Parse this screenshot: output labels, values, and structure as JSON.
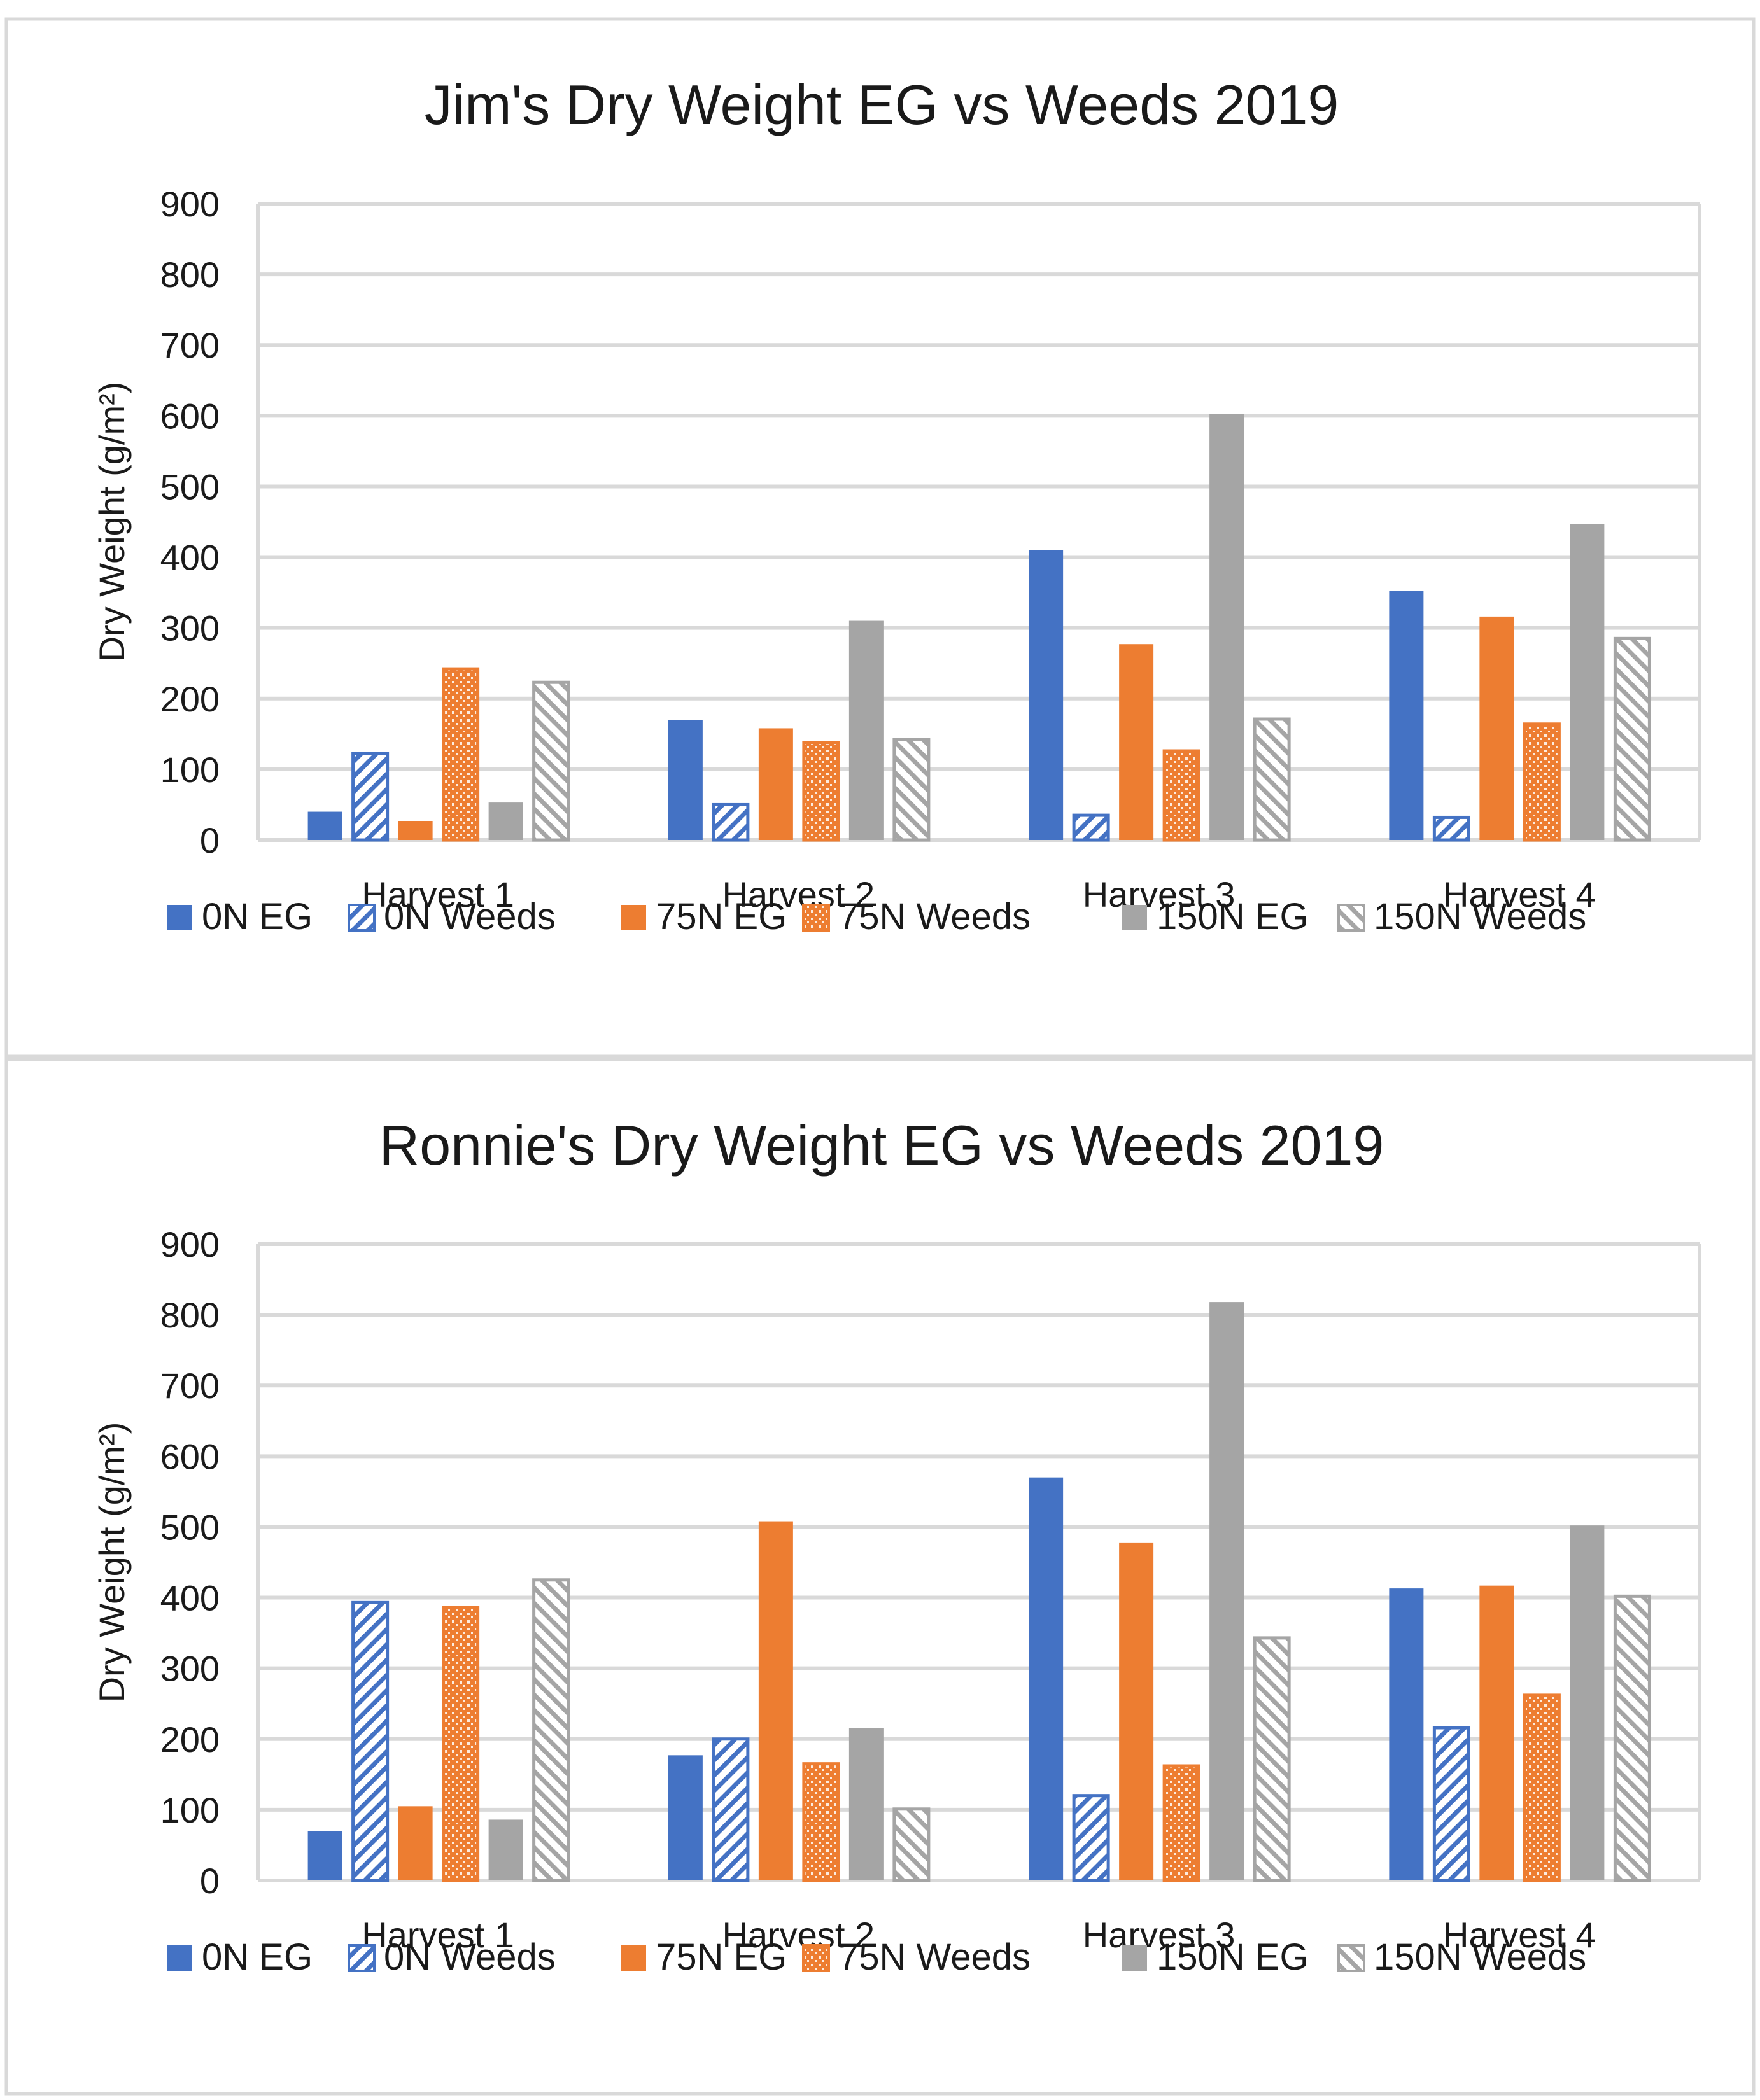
{
  "colors": {
    "blue": "#4472c4",
    "orange": "#ed7d31",
    "gray": "#a5a5a5"
  },
  "series_style": [
    {
      "name": "0N EG",
      "color": "#4472c4",
      "pattern": "solid"
    },
    {
      "name": "0N Weeds",
      "color": "#4472c4",
      "pattern": "diag-up"
    },
    {
      "name": "75N EG",
      "color": "#ed7d31",
      "pattern": "solid"
    },
    {
      "name": "75N Weeds",
      "color": "#ed7d31",
      "pattern": "checker"
    },
    {
      "name": "150N EG",
      "color": "#a5a5a5",
      "pattern": "solid"
    },
    {
      "name": "150N Weeds",
      "color": "#a5a5a5",
      "pattern": "diag-down"
    }
  ],
  "chart_data": [
    {
      "type": "bar",
      "title": "Jim's Dry Weight EG vs Weeds 2019",
      "xlabel": "",
      "ylabel": "Dry Weight (g/m²)",
      "ylim": [
        0,
        900
      ],
      "yticks": [
        0,
        100,
        200,
        300,
        400,
        500,
        600,
        700,
        800,
        900
      ],
      "grid": true,
      "legend": "bottom",
      "categories": [
        "Harvest 1",
        "Harvest 2",
        "Harvest 3",
        "Harvest 4"
      ],
      "series": [
        {
          "name": "0N EG",
          "values": [
            40,
            170,
            410,
            352
          ]
        },
        {
          "name": "0N Weeds",
          "values": [
            122,
            50,
            35,
            32
          ]
        },
        {
          "name": "75N EG",
          "values": [
            27,
            158,
            277,
            316
          ]
        },
        {
          "name": "75N Weeds",
          "values": [
            242,
            138,
            126,
            164
          ]
        },
        {
          "name": "150N EG",
          "values": [
            53,
            310,
            603,
            447
          ]
        },
        {
          "name": "150N Weeds",
          "values": [
            223,
            142,
            171,
            285
          ]
        }
      ]
    },
    {
      "type": "bar",
      "title": "Ronnie's Dry Weight EG vs Weeds 2019",
      "xlabel": "",
      "ylabel": "Dry Weight (g/m²)",
      "ylim": [
        0,
        900
      ],
      "yticks": [
        0,
        100,
        200,
        300,
        400,
        500,
        600,
        700,
        800,
        900
      ],
      "grid": true,
      "legend": "bottom",
      "categories": [
        "Harvest 1",
        "Harvest 2",
        "Harvest 3",
        "Harvest 4"
      ],
      "series": [
        {
          "name": "0N EG",
          "values": [
            70,
            177,
            570,
            413
          ]
        },
        {
          "name": "0N Weeds",
          "values": [
            393,
            200,
            120,
            216
          ]
        },
        {
          "name": "75N EG",
          "values": [
            105,
            508,
            478,
            417
          ]
        },
        {
          "name": "75N Weeds",
          "values": [
            386,
            165,
            162,
            262
          ]
        },
        {
          "name": "150N EG",
          "values": [
            86,
            216,
            818,
            502
          ]
        },
        {
          "name": "150N Weeds",
          "values": [
            425,
            101,
            343,
            402
          ]
        }
      ]
    }
  ]
}
